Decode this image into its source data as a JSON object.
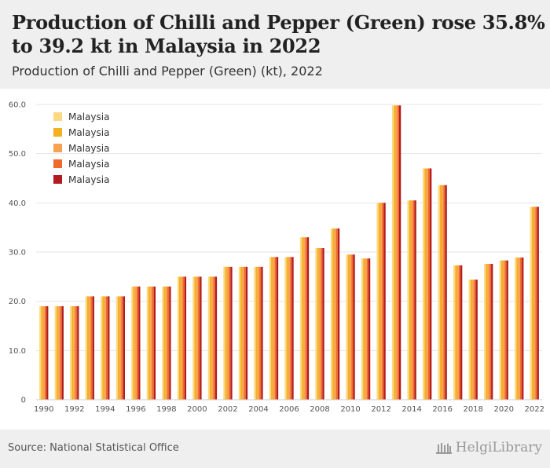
{
  "title": "Production of Chilli and Pepper (Green) rose 35.8% to 39.2 kt in Malaysia in 2022",
  "subtitle": "Production of Chilli and Pepper (Green) (kt), 2022",
  "source": "Source: National Statistical Office",
  "brand": "HelgiLibrary",
  "colors": {
    "series": [
      "#fdd882",
      "#f3b020",
      "#f8a150",
      "#ef6b2b",
      "#b21c1e"
    ],
    "grid": "#e6e6e6",
    "header_bg": "#efefef"
  },
  "chart_data": {
    "type": "bar",
    "title": "Production of Chilli and Pepper (Green) (kt), 2022",
    "xlabel": "",
    "ylabel": "",
    "ylim": [
      0,
      60
    ],
    "yticks": [
      "0",
      "10.0",
      "20.0",
      "30.0",
      "40.0",
      "50.0",
      "60.0"
    ],
    "grid": true,
    "legend_position": "top-left",
    "categories": [
      1990,
      1991,
      1992,
      1993,
      1994,
      1995,
      1996,
      1997,
      1998,
      1999,
      2000,
      2001,
      2002,
      2003,
      2004,
      2005,
      2006,
      2007,
      2008,
      2009,
      2010,
      2011,
      2012,
      2013,
      2014,
      2015,
      2016,
      2017,
      2018,
      2019,
      2020,
      2021,
      2022
    ],
    "xtick_labels": [
      "1990",
      "1992",
      "1994",
      "1996",
      "1998",
      "2000",
      "2002",
      "2004",
      "2006",
      "2008",
      "2010",
      "2012",
      "2014",
      "2016",
      "2018",
      "2020",
      "2022"
    ],
    "series": [
      {
        "name": "Malaysia",
        "values": [
          19.0,
          19.0,
          19.0,
          21.0,
          21.0,
          21.0,
          23.0,
          23.0,
          23.0,
          25.0,
          25.0,
          25.0,
          27.0,
          27.0,
          27.0,
          29.0,
          29.0,
          33.0,
          30.8,
          34.8,
          29.5,
          28.7,
          40.0,
          59.8,
          40.5,
          47.0,
          43.6,
          27.3,
          24.4,
          27.6,
          28.3,
          28.9,
          39.2
        ]
      },
      {
        "name": "Malaysia",
        "values": [
          19.0,
          19.0,
          19.0,
          21.0,
          21.0,
          21.0,
          23.0,
          23.0,
          23.0,
          25.0,
          25.0,
          25.0,
          27.0,
          27.0,
          27.0,
          29.0,
          29.0,
          33.0,
          30.8,
          34.8,
          29.5,
          28.7,
          40.0,
          59.8,
          40.5,
          47.0,
          43.6,
          27.3,
          24.4,
          27.6,
          28.3,
          28.9,
          39.2
        ]
      },
      {
        "name": "Malaysia",
        "values": [
          19.0,
          19.0,
          19.0,
          21.0,
          21.0,
          21.0,
          23.0,
          23.0,
          23.0,
          25.0,
          25.0,
          25.0,
          27.0,
          27.0,
          27.0,
          29.0,
          29.0,
          33.0,
          30.8,
          34.8,
          29.5,
          28.7,
          40.0,
          59.8,
          40.5,
          47.0,
          43.6,
          27.3,
          24.4,
          27.6,
          28.3,
          28.9,
          39.2
        ]
      },
      {
        "name": "Malaysia",
        "values": [
          19.0,
          19.0,
          19.0,
          21.0,
          21.0,
          21.0,
          23.0,
          23.0,
          23.0,
          25.0,
          25.0,
          25.0,
          27.0,
          27.0,
          27.0,
          29.0,
          29.0,
          33.0,
          30.8,
          34.8,
          29.5,
          28.7,
          40.0,
          59.8,
          40.5,
          47.0,
          43.6,
          27.3,
          24.4,
          27.6,
          28.3,
          28.9,
          39.2
        ]
      },
      {
        "name": "Malaysia",
        "values": [
          19.0,
          19.0,
          19.0,
          21.0,
          21.0,
          21.0,
          23.0,
          23.0,
          23.0,
          25.0,
          25.0,
          25.0,
          27.0,
          27.0,
          27.0,
          29.0,
          29.0,
          33.0,
          30.8,
          34.8,
          29.5,
          28.7,
          40.0,
          59.8,
          40.5,
          47.0,
          43.6,
          27.3,
          24.4,
          27.6,
          28.3,
          28.9,
          39.2
        ]
      }
    ]
  }
}
